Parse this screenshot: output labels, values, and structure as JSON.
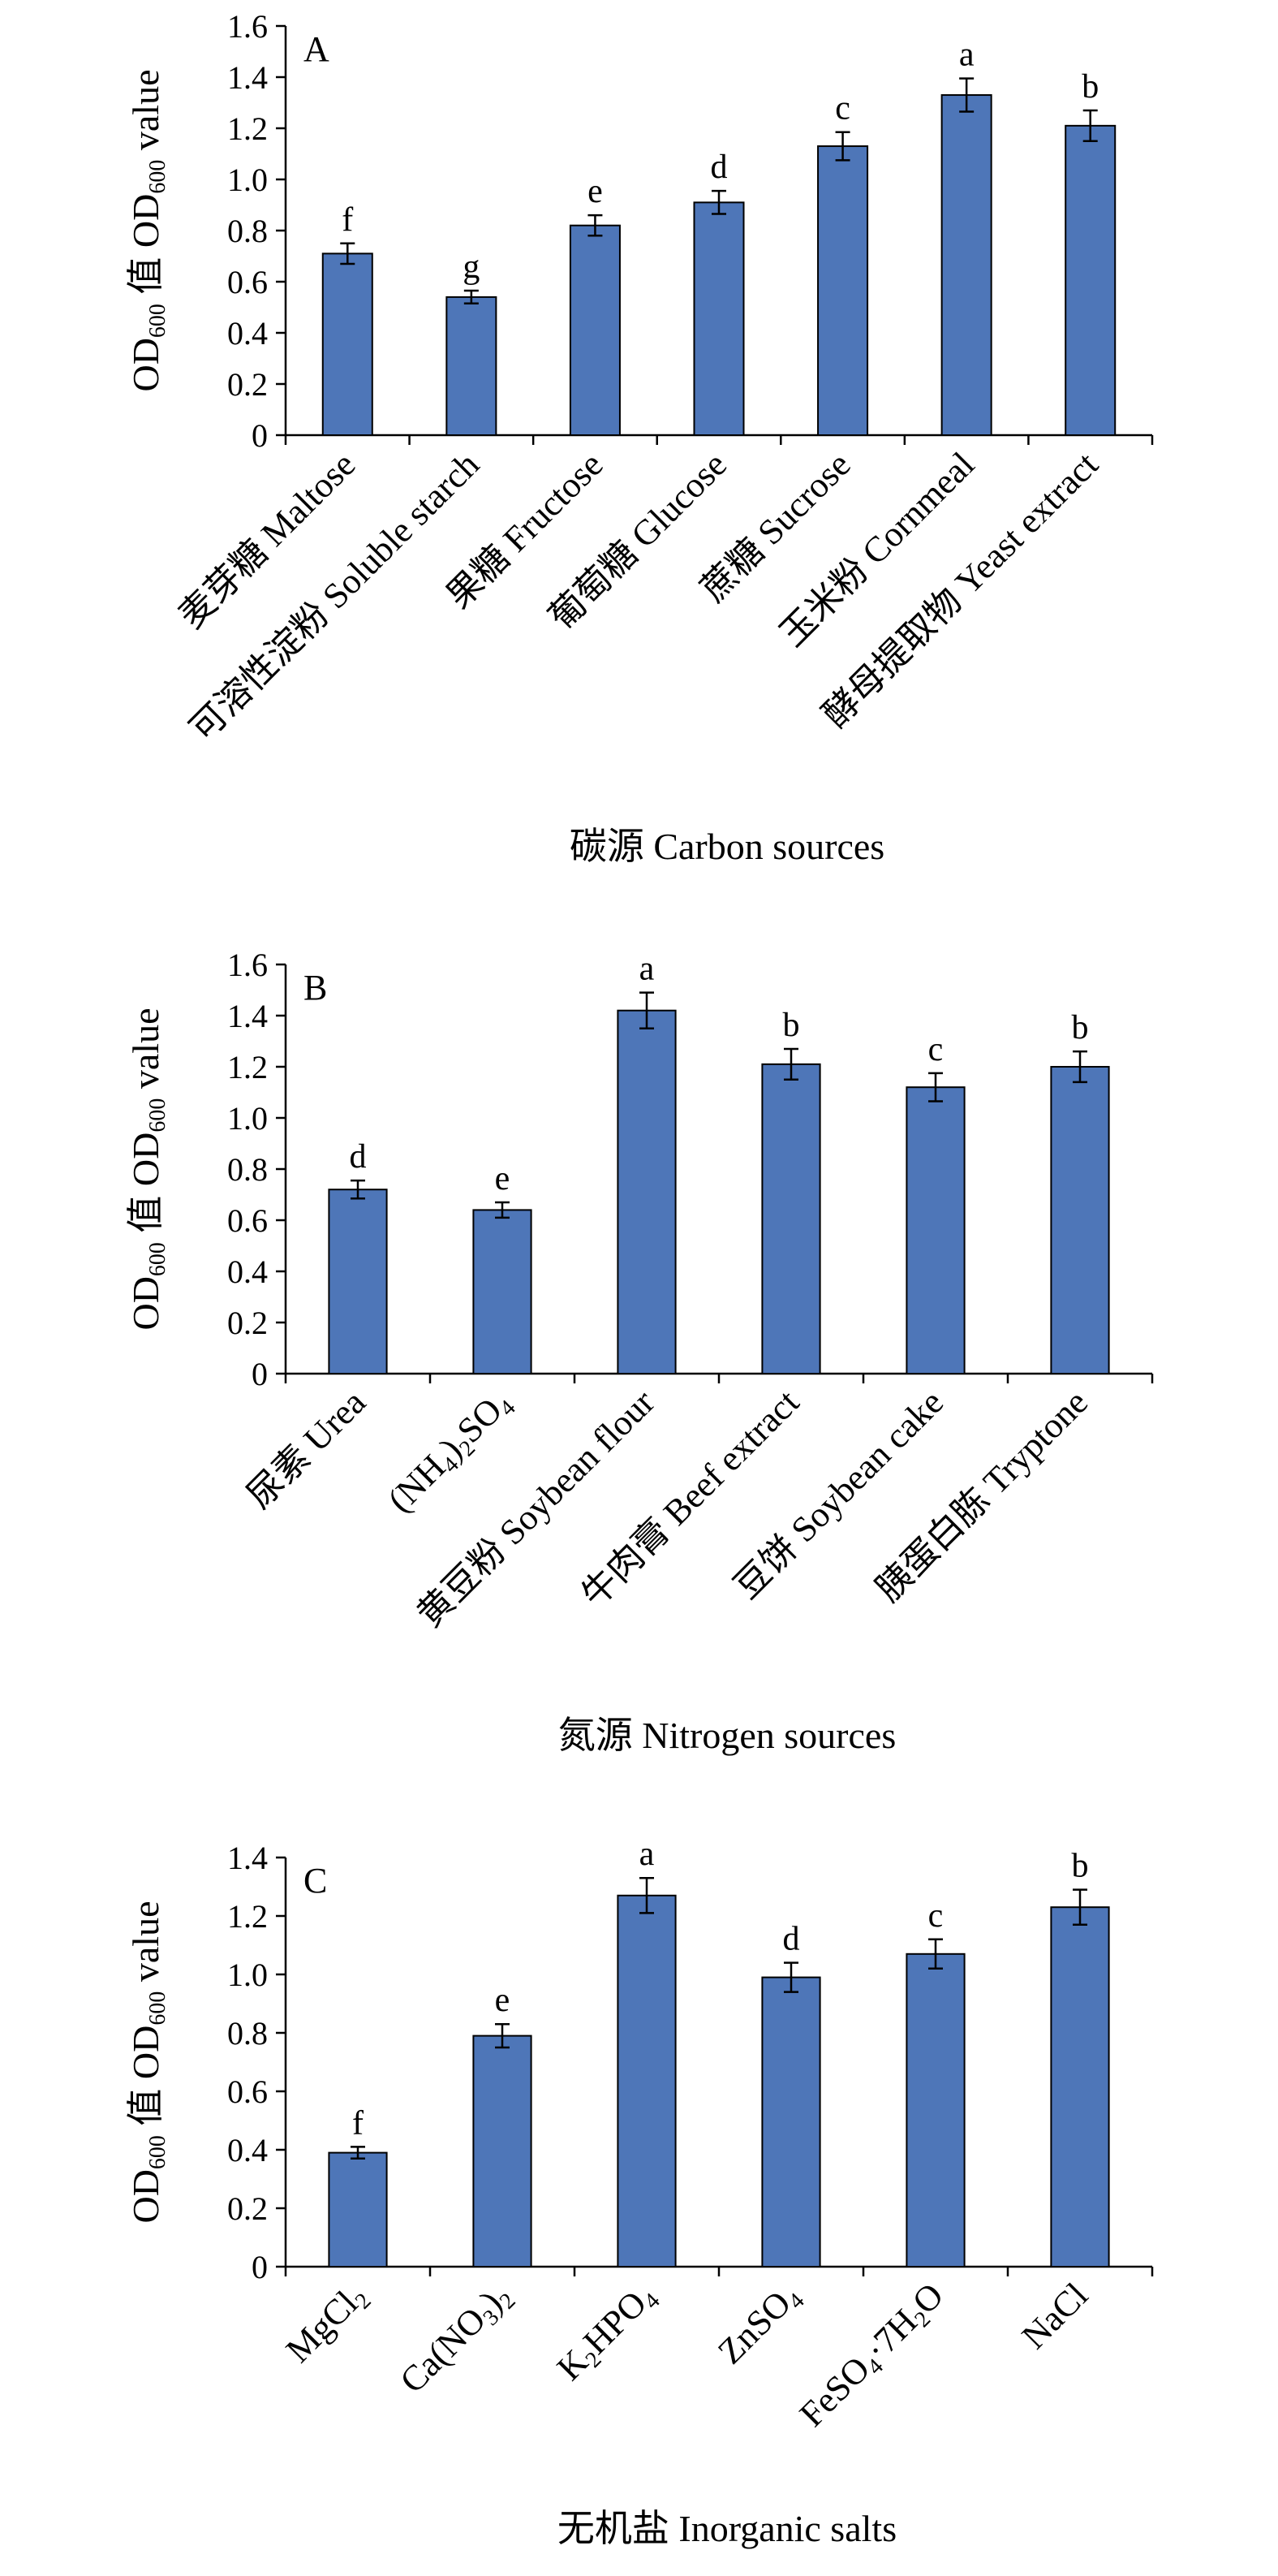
{
  "chart_data": [
    {
      "type": "bar",
      "panel": "A",
      "ylabel_parts": [
        "OD",
        "600",
        " 值 OD",
        "600",
        " value"
      ],
      "xlabel": "碳源 Carbon sources",
      "ylim": [
        0,
        1.6
      ],
      "yticks": [
        "0",
        "0.2",
        "0.4",
        "0.6",
        "0.8",
        "1.0",
        "1.2",
        "1.4",
        "1.6"
      ],
      "categories": [
        [
          {
            "t": "麦芽糖 Maltose"
          }
        ],
        [
          {
            "t": "可溶性淀粉 Soluble starch"
          }
        ],
        [
          {
            "t": "果糖 Fructose"
          }
        ],
        [
          {
            "t": "葡萄糖 Glucose"
          }
        ],
        [
          {
            "t": "蔗糖 Sucrose"
          }
        ],
        [
          {
            "t": "玉米粉 Cornmeal"
          }
        ],
        [
          {
            "t": "酵母提取物 Yeast extract"
          }
        ]
      ],
      "values": [
        0.71,
        0.54,
        0.82,
        0.91,
        1.13,
        1.33,
        1.21
      ],
      "errors": [
        0.04,
        0.025,
        0.04,
        0.045,
        0.055,
        0.065,
        0.06
      ],
      "letters": [
        "f",
        "g",
        "e",
        "d",
        "c",
        "a",
        "b"
      ],
      "bar_color": "#4e76b8"
    },
    {
      "type": "bar",
      "panel": "B",
      "ylabel_parts": [
        "OD",
        "600",
        " 值 OD",
        "600",
        " value"
      ],
      "xlabel": "氮源 Nitrogen sources",
      "ylim": [
        0,
        1.6
      ],
      "yticks": [
        "0",
        "0.2",
        "0.4",
        "0.6",
        "0.8",
        "1.0",
        "1.2",
        "1.4",
        "1.6"
      ],
      "categories": [
        [
          {
            "t": "尿素 Urea"
          }
        ],
        [
          {
            "t": "(NH"
          },
          {
            "t": "4",
            "sub": true
          },
          {
            "t": ")"
          },
          {
            "t": "2",
            "sub": true
          },
          {
            "t": "SO"
          },
          {
            "t": "4",
            "sub": true
          }
        ],
        [
          {
            "t": "黄豆粉 Soybean flour"
          }
        ],
        [
          {
            "t": "牛肉膏 Beef extract"
          }
        ],
        [
          {
            "t": "豆饼 Soybean cake"
          }
        ],
        [
          {
            "t": "胰蛋白胨 Tryptone"
          }
        ]
      ],
      "values": [
        0.72,
        0.64,
        1.42,
        1.21,
        1.12,
        1.2
      ],
      "errors": [
        0.035,
        0.03,
        0.07,
        0.06,
        0.055,
        0.06
      ],
      "letters": [
        "d",
        "e",
        "a",
        "b",
        "c",
        "b"
      ],
      "bar_color": "#4e76b8"
    },
    {
      "type": "bar",
      "panel": "C",
      "ylabel_parts": [
        "OD",
        "600",
        " 值 OD",
        "600",
        " value"
      ],
      "xlabel": "无机盐 Inorganic salts",
      "ylim": [
        0,
        1.4
      ],
      "yticks": [
        "0",
        "0.2",
        "0.4",
        "0.6",
        "0.8",
        "1.0",
        "1.2",
        "1.4"
      ],
      "categories": [
        [
          {
            "t": "MgCl"
          },
          {
            "t": "2",
            "sub": true
          }
        ],
        [
          {
            "t": "Ca(NO"
          },
          {
            "t": "3",
            "sub": true
          },
          {
            "t": ")"
          },
          {
            "t": "2",
            "sub": true
          }
        ],
        [
          {
            "t": "K"
          },
          {
            "t": "2",
            "sub": true
          },
          {
            "t": "HPO"
          },
          {
            "t": "4",
            "sub": true
          }
        ],
        [
          {
            "t": "ZnSO"
          },
          {
            "t": "4",
            "sub": true
          }
        ],
        [
          {
            "t": "FeSO"
          },
          {
            "t": "4",
            "sub": true
          },
          {
            "t": "·7H"
          },
          {
            "t": "2",
            "sub": true
          },
          {
            "t": "O"
          }
        ],
        [
          {
            "t": "NaCl"
          }
        ]
      ],
      "values": [
        0.39,
        0.79,
        1.27,
        0.99,
        1.07,
        1.23
      ],
      "errors": [
        0.02,
        0.04,
        0.06,
        0.05,
        0.05,
        0.06
      ],
      "letters": [
        "f",
        "e",
        "a",
        "d",
        "c",
        "b"
      ],
      "bar_color": "#4e76b8"
    }
  ]
}
